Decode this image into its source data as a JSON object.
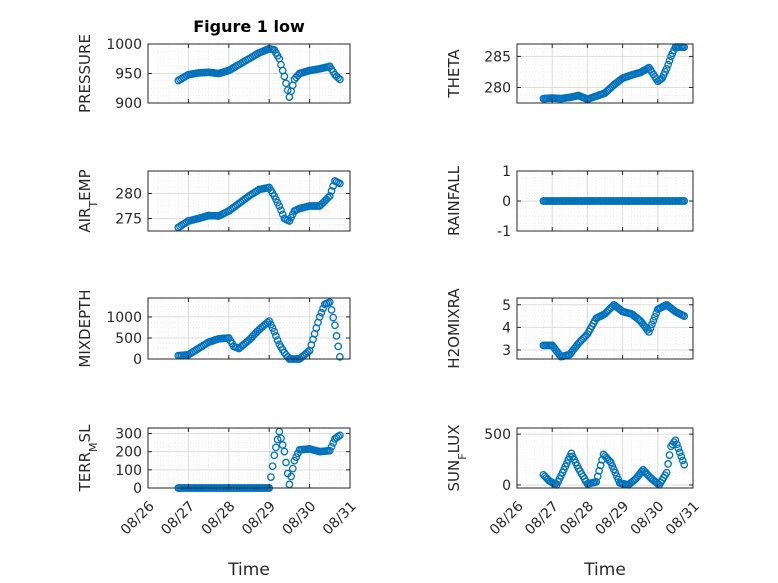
{
  "chart_data": [
    {
      "type": "scatter",
      "title": "Figure 1 low",
      "ylabel": "PRESSURE",
      "xlabel": "",
      "xlim": [
        "08/26",
        "08/31"
      ],
      "ylim": [
        900,
        1000
      ],
      "yticks": [
        "900",
        "950",
        "1000"
      ],
      "xticks": [],
      "grid": true,
      "x": [
        "08/26 18:00",
        "08/27 00:00",
        "08/27 06:00",
        "08/27 12:00",
        "08/27 18:00",
        "08/28 00:00",
        "08/28 06:00",
        "08/28 12:00",
        "08/28 18:00",
        "08/29 00:00",
        "08/29 03:00",
        "08/29 06:00",
        "08/29 09:00",
        "08/29 12:00",
        "08/29 15:00",
        "08/29 18:00",
        "08/30 00:00",
        "08/30 06:00",
        "08/30 12:00",
        "08/30 15:00",
        "08/30 18:00"
      ],
      "y": [
        938,
        948,
        951,
        952,
        950,
        955,
        965,
        975,
        985,
        992,
        990,
        975,
        945,
        910,
        940,
        950,
        955,
        958,
        962,
        948,
        940
      ]
    },
    {
      "type": "scatter",
      "title": "",
      "ylabel": "THETA",
      "xlabel": "",
      "xlim": [
        "08/26",
        "08/31"
      ],
      "ylim": [
        277.5,
        287
      ],
      "yticks": [
        "280",
        "285"
      ],
      "xticks": [],
      "grid": true,
      "x": [
        "08/26 18:00",
        "08/27 00:00",
        "08/27 06:00",
        "08/27 12:00",
        "08/27 18:00",
        "08/28 00:00",
        "08/28 06:00",
        "08/28 12:00",
        "08/28 18:00",
        "08/29 00:00",
        "08/29 06:00",
        "08/29 12:00",
        "08/29 18:00",
        "08/30 00:00",
        "08/30 03:00",
        "08/30 06:00",
        "08/30 09:00",
        "08/30 12:00",
        "08/30 18:00"
      ],
      "y": [
        278.2,
        278.3,
        278.2,
        278.4,
        278.7,
        278.1,
        278.6,
        279.1,
        280.4,
        281.5,
        282.0,
        282.4,
        283.2,
        281.0,
        281.5,
        283.0,
        285.0,
        286.5,
        286.5
      ]
    },
    {
      "type": "scatter",
      "title": "",
      "ylabel": "AIR_TEMP",
      "xlabel": "",
      "xlim": [
        "08/26",
        "08/31"
      ],
      "ylim": [
        272.5,
        284.5
      ],
      "yticks": [
        "275",
        "280"
      ],
      "xticks": [],
      "grid": true,
      "x": [
        "08/26 18:00",
        "08/27 00:00",
        "08/27 06:00",
        "08/27 12:00",
        "08/27 18:00",
        "08/28 00:00",
        "08/28 06:00",
        "08/28 12:00",
        "08/28 18:00",
        "08/29 00:00",
        "08/29 03:00",
        "08/29 06:00",
        "08/29 09:00",
        "08/29 12:00",
        "08/29 15:00",
        "08/29 18:00",
        "08/30 00:00",
        "08/30 06:00",
        "08/30 12:00",
        "08/30 15:00",
        "08/30 18:00"
      ],
      "y": [
        273.2,
        274.5,
        275.0,
        275.6,
        275.5,
        276.5,
        278.0,
        279.5,
        280.8,
        281.2,
        279.5,
        277.5,
        275.0,
        274.5,
        276.5,
        277.0,
        277.5,
        277.5,
        279.5,
        282.5,
        282.0
      ]
    },
    {
      "type": "scatter",
      "title": "",
      "ylabel": "RAINFALL",
      "xlabel": "",
      "xlim": [
        "08/26",
        "08/31"
      ],
      "ylim": [
        -1,
        1
      ],
      "yticks": [
        "-1",
        "0",
        "1"
      ],
      "xticks": [],
      "grid": true,
      "x": [
        "08/26 18:00",
        "08/27 00:00",
        "08/27 06:00",
        "08/27 12:00",
        "08/27 18:00",
        "08/28 00:00",
        "08/28 06:00",
        "08/28 12:00",
        "08/28 18:00",
        "08/29 00:00",
        "08/29 06:00",
        "08/29 12:00",
        "08/29 18:00",
        "08/30 00:00",
        "08/30 06:00",
        "08/30 12:00",
        "08/30 18:00"
      ],
      "y": [
        0,
        0,
        0,
        0,
        0,
        0,
        0,
        0,
        0,
        0,
        0,
        0,
        0,
        0,
        0,
        0,
        0
      ]
    },
    {
      "type": "scatter",
      "title": "",
      "ylabel": "MIXDEPTH",
      "xlabel": "",
      "xlim": [
        "08/26",
        "08/31"
      ],
      "ylim": [
        0,
        1450
      ],
      "yticks": [
        "0",
        "500",
        "1000"
      ],
      "xticks": [],
      "grid": true,
      "x": [
        "08/26 18:00",
        "08/27 00:00",
        "08/27 06:00",
        "08/27 12:00",
        "08/27 18:00",
        "08/28 00:00",
        "08/28 03:00",
        "08/28 06:00",
        "08/28 12:00",
        "08/28 18:00",
        "08/29 00:00",
        "08/29 03:00",
        "08/29 06:00",
        "08/29 09:00",
        "08/29 12:00",
        "08/29 15:00",
        "08/29 18:00",
        "08/30 00:00",
        "08/30 03:00",
        "08/30 06:00",
        "08/30 09:00",
        "08/30 12:00",
        "08/30 15:00",
        "08/30 18:00"
      ],
      "y": [
        80,
        100,
        250,
        400,
        480,
        500,
        300,
        250,
        450,
        700,
        900,
        650,
        350,
        150,
        0,
        0,
        0,
        200,
        600,
        1000,
        1300,
        1350,
        800,
        50
      ]
    },
    {
      "type": "scatter",
      "title": "",
      "ylabel": "H2OMIXRA",
      "xlabel": "",
      "xlim": [
        "08/26",
        "08/31"
      ],
      "ylim": [
        2.6,
        5.3
      ],
      "yticks": [
        "3",
        "4",
        "5"
      ],
      "xticks": [],
      "grid": true,
      "x": [
        "08/26 18:00",
        "08/27 00:00",
        "08/27 06:00",
        "08/27 12:00",
        "08/27 18:00",
        "08/28 00:00",
        "08/28 06:00",
        "08/28 12:00",
        "08/28 18:00",
        "08/29 00:00",
        "08/29 06:00",
        "08/29 12:00",
        "08/29 18:00",
        "08/30 00:00",
        "08/30 06:00",
        "08/30 12:00",
        "08/30 18:00"
      ],
      "y": [
        3.2,
        3.2,
        2.7,
        2.8,
        3.3,
        3.7,
        4.4,
        4.6,
        5.0,
        4.7,
        4.6,
        4.3,
        3.8,
        4.8,
        5.0,
        4.7,
        4.5
      ]
    },
    {
      "type": "scatter",
      "title": "",
      "ylabel": "TERR_MSL",
      "xlabel": "Time",
      "xlim": [
        "08/26",
        "08/31"
      ],
      "ylim": [
        0,
        330
      ],
      "yticks": [
        "0",
        "100",
        "200",
        "300"
      ],
      "xticks": [
        "08/26",
        "08/27",
        "08/28",
        "08/29",
        "08/30",
        "08/31"
      ],
      "grid": true,
      "x": [
        "08/26 18:00",
        "08/27 00:00",
        "08/27 12:00",
        "08/28 00:00",
        "08/28 12:00",
        "08/29 00:00",
        "08/29 03:00",
        "08/29 06:00",
        "08/29 09:00",
        "08/29 12:00",
        "08/29 15:00",
        "08/29 18:00",
        "08/30 00:00",
        "08/30 06:00",
        "08/30 12:00",
        "08/30 15:00",
        "08/30 18:00"
      ],
      "y": [
        0,
        0,
        0,
        0,
        0,
        0,
        180,
        310,
        200,
        20,
        150,
        210,
        215,
        200,
        205,
        270,
        290
      ]
    },
    {
      "type": "scatter",
      "title": "",
      "ylabel": "SUN_FLUX",
      "xlabel": "Time",
      "xlim": [
        "08/26",
        "08/31"
      ],
      "ylim": [
        -30,
        560
      ],
      "yticks": [
        "0",
        "500"
      ],
      "xticks": [
        "08/26",
        "08/27",
        "08/28",
        "08/29",
        "08/30",
        "08/31"
      ],
      "grid": true,
      "x": [
        "08/26 18:00",
        "08/26 22:00",
        "08/27 03:00",
        "08/27 08:00",
        "08/27 13:00",
        "08/27 18:00",
        "08/28 00:00",
        "08/28 06:00",
        "08/28 11:00",
        "08/28 16:00",
        "08/28 22:00",
        "08/29 04:00",
        "08/29 09:00",
        "08/29 14:00",
        "08/29 19:00",
        "08/30 01:00",
        "08/30 06:00",
        "08/30 09:00",
        "08/30 12:00",
        "08/30 15:00",
        "08/30 18:00"
      ],
      "y": [
        100,
        40,
        0,
        150,
        310,
        160,
        10,
        30,
        300,
        220,
        20,
        0,
        60,
        150,
        70,
        0,
        120,
        380,
        440,
        320,
        200
      ]
    }
  ]
}
